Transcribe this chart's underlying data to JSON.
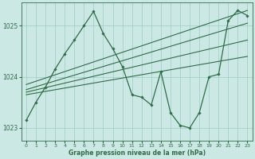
{
  "xlabel": "Graphe pression niveau de la mer (hPa)",
  "bg_color": "#cce8e4",
  "grid_color": "#9eccc6",
  "line_color": "#2d6e45",
  "ylim": [
    1022.75,
    1025.45
  ],
  "yticks": [
    1023,
    1024,
    1025
  ],
  "xlim": [
    -0.5,
    23.5
  ],
  "xticks": [
    0,
    1,
    2,
    3,
    4,
    5,
    6,
    7,
    8,
    9,
    10,
    11,
    12,
    13,
    14,
    15,
    16,
    17,
    18,
    19,
    20,
    21,
    22,
    23
  ],
  "series": {
    "volatile": {
      "x": [
        0,
        1,
        2,
        3,
        4,
        5,
        6,
        7,
        8,
        9,
        10,
        11,
        12,
        13,
        14,
        15,
        16,
        17,
        18,
        19,
        20,
        21,
        22,
        23
      ],
      "y": [
        1023.15,
        1023.5,
        1023.8,
        1024.15,
        1024.45,
        1024.72,
        1025.0,
        1025.28,
        1024.85,
        1024.55,
        1024.2,
        1023.65,
        1023.6,
        1023.45,
        1024.1,
        1023.3,
        1023.05,
        1023.0,
        1023.3,
        1024.0,
        1024.05,
        1025.1,
        1025.3,
        1025.2
      ]
    },
    "line1": {
      "x": [
        0,
        23
      ],
      "y": [
        1023.85,
        1025.3
      ]
    },
    "line2": {
      "x": [
        0,
        23
      ],
      "y": [
        1023.75,
        1025.05
      ]
    },
    "line3": {
      "x": [
        0,
        23
      ],
      "y": [
        1023.7,
        1024.72
      ]
    },
    "line4": {
      "x": [
        0,
        23
      ],
      "y": [
        1023.65,
        1024.4
      ]
    }
  }
}
